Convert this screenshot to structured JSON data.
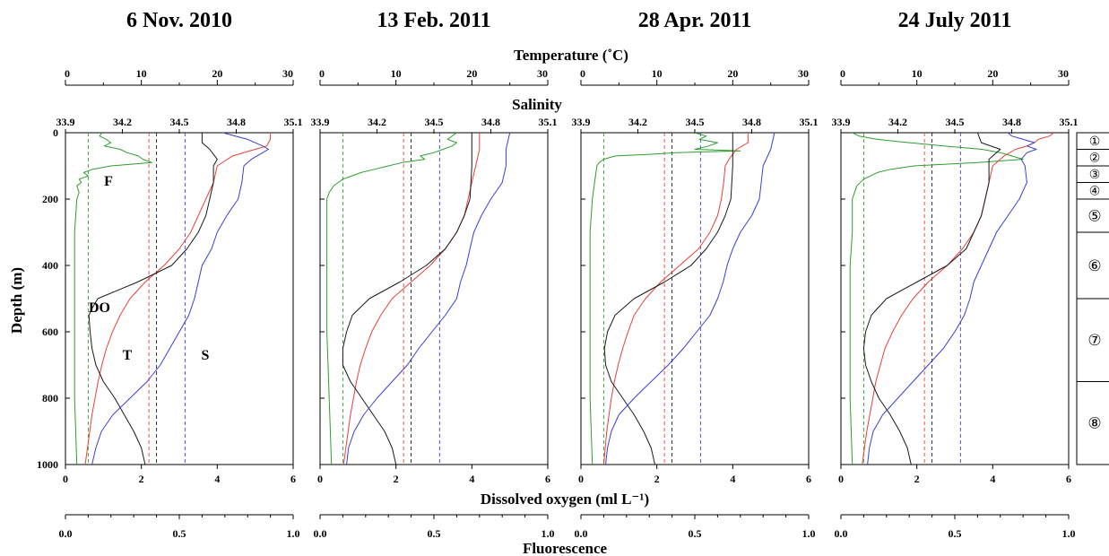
{
  "chart_data": {
    "type": "line",
    "panels": [
      {
        "title": "6 Nov. 2010",
        "curve_labels": {
          "F": "F",
          "DO": "DO",
          "T": "T",
          "S": "S"
        },
        "series": {
          "temperature": {
            "depth": [
              0,
              20,
              40,
              50,
              70,
              100,
              150,
              200,
              250,
              300,
              350,
              400,
              450,
              500,
              550,
              600,
              650,
              700,
              750,
              800,
              850,
              900,
              950,
              1000
            ],
            "value": [
              27,
              27,
              26.5,
              25,
              22,
              20,
              19.5,
              18.5,
              17.5,
              16.5,
              15,
              13,
              10.5,
              8.5,
              7.2,
              6.2,
              5.4,
              4.8,
              4.3,
              3.9,
              3.5,
              3.2,
              2.9,
              2.6
            ]
          },
          "salinity": {
            "depth": [
              0,
              20,
              40,
              50,
              60,
              80,
              100,
              150,
              200,
              250,
              300,
              350,
              400,
              450,
              500,
              550,
              600,
              650,
              700,
              750,
              800,
              850,
              900,
              950,
              1000
            ],
            "value": [
              34.73,
              34.86,
              34.94,
              34.97,
              34.94,
              34.88,
              34.84,
              34.83,
              34.81,
              34.75,
              34.7,
              34.67,
              34.62,
              34.6,
              34.58,
              34.55,
              34.5,
              34.45,
              34.4,
              34.33,
              34.24,
              34.15,
              34.09,
              34.06,
              34.04
            ]
          },
          "dissolved_oxygen": {
            "depth": [
              0,
              30,
              50,
              80,
              100,
              150,
              200,
              250,
              300,
              350,
              400,
              450,
              500,
              530,
              550,
              600,
              650,
              700,
              750,
              800,
              850,
              900,
              950,
              1000
            ],
            "value": [
              3.6,
              3.6,
              3.8,
              4.0,
              3.9,
              3.9,
              3.8,
              3.7,
              3.5,
              3.2,
              2.8,
              1.9,
              0.85,
              0.7,
              0.62,
              0.65,
              0.7,
              0.8,
              1.0,
              1.3,
              1.55,
              1.8,
              2.0,
              2.1
            ]
          },
          "fluorescence": {
            "depth": [
              0,
              10,
              20,
              30,
              40,
              50,
              60,
              70,
              80,
              90,
              100,
              110,
              120,
              130,
              140,
              150,
              160,
              180,
              200,
              300,
              400,
              600,
              800,
              1000
            ],
            "value": [
              0.16,
              0.15,
              0.18,
              0.2,
              0.17,
              0.24,
              0.27,
              0.32,
              0.34,
              0.38,
              0.2,
              0.12,
              0.08,
              0.1,
              0.06,
              0.07,
              0.05,
              0.06,
              0.05,
              0.04,
              0.04,
              0.04,
              0.04,
              0.05
            ]
          }
        }
      },
      {
        "title": "13 Feb. 2011",
        "curve_labels": {},
        "series": {
          "temperature": {
            "depth": [
              0,
              50,
              100,
              150,
              200,
              250,
              300,
              350,
              400,
              450,
              500,
              550,
              600,
              650,
              700,
              750,
              800,
              850,
              900,
              950,
              1000
            ],
            "value": [
              21,
              21,
              20.5,
              20,
              19.5,
              19,
              18,
              16.5,
              14.5,
              12,
              9.5,
              8,
              6.8,
              6,
              5.3,
              4.8,
              4.4,
              4,
              3.7,
              3.4,
              3.1
            ]
          },
          "salinity": {
            "depth": [
              0,
              50,
              100,
              150,
              200,
              250,
              300,
              350,
              400,
              450,
              500,
              550,
              600,
              650,
              700,
              750,
              800,
              850,
              900,
              950,
              1000
            ],
            "value": [
              34.9,
              34.88,
              34.88,
              34.86,
              34.8,
              34.75,
              34.71,
              34.69,
              34.67,
              34.64,
              34.62,
              34.56,
              34.49,
              34.42,
              34.36,
              34.28,
              34.2,
              34.13,
              34.08,
              34.05,
              34.04
            ]
          },
          "dissolved_oxygen": {
            "depth": [
              0,
              100,
              200,
              250,
              300,
              350,
              400,
              450,
              500,
              550,
              600,
              650,
              700,
              750,
              800,
              850,
              900,
              950,
              1000
            ],
            "value": [
              4.0,
              4.0,
              3.95,
              3.8,
              3.6,
              3.3,
              2.8,
              2.1,
              1.3,
              0.85,
              0.7,
              0.6,
              0.6,
              0.8,
              1.1,
              1.4,
              1.7,
              1.9,
              2.0
            ]
          },
          "fluorescence": {
            "depth": [
              0,
              20,
              30,
              40,
              50,
              60,
              70,
              80,
              90,
              100,
              110,
              120,
              130,
              140,
              150,
              160,
              180,
              200,
              300,
              400,
              600,
              800,
              1000
            ],
            "value": [
              0.6,
              0.56,
              0.6,
              0.58,
              0.54,
              0.5,
              0.44,
              0.46,
              0.36,
              0.3,
              0.24,
              0.18,
              0.14,
              0.1,
              0.08,
              0.06,
              0.04,
              0.03,
              0.03,
              0.03,
              0.03,
              0.04,
              0.05
            ]
          }
        }
      },
      {
        "title": "28 Apr. 2011",
        "curve_labels": {},
        "series": {
          "temperature": {
            "depth": [
              0,
              30,
              50,
              80,
              100,
              150,
              200,
              250,
              300,
              350,
              400,
              450,
              500,
              550,
              600,
              650,
              700,
              750,
              800,
              850,
              900,
              950,
              1000
            ],
            "value": [
              22,
              22,
              20.5,
              19.5,
              19,
              18.8,
              18.5,
              18,
              17,
              15.5,
              13,
              10.5,
              8.5,
              7,
              6.2,
              5.5,
              4.9,
              4.4,
              4,
              3.7,
              3.4,
              3.2,
              3
            ]
          },
          "salinity": {
            "depth": [
              0,
              50,
              100,
              150,
              200,
              250,
              300,
              350,
              400,
              450,
              500,
              550,
              600,
              650,
              700,
              750,
              800,
              850,
              900,
              950,
              1000
            ],
            "value": [
              34.92,
              34.9,
              34.86,
              34.85,
              34.84,
              34.8,
              34.74,
              34.7,
              34.67,
              34.65,
              34.62,
              34.58,
              34.51,
              34.44,
              34.36,
              34.27,
              34.18,
              34.1,
              34.06,
              34.04,
              34.03
            ]
          },
          "dissolved_oxygen": {
            "depth": [
              0,
              100,
              200,
              250,
              300,
              350,
              400,
              450,
              500,
              550,
              600,
              650,
              700,
              750,
              800,
              850,
              900,
              950,
              1000
            ],
            "value": [
              4.0,
              4.0,
              3.95,
              3.8,
              3.6,
              3.3,
              2.9,
              2.2,
              1.4,
              0.9,
              0.7,
              0.62,
              0.65,
              0.8,
              1.1,
              1.4,
              1.65,
              1.85,
              1.95
            ]
          },
          "fluorescence": {
            "depth": [
              0,
              10,
              20,
              30,
              40,
              50,
              55,
              60,
              65,
              70,
              80,
              90,
              100,
              150,
              200,
              300,
              400,
              600,
              800,
              1000
            ],
            "value": [
              0.5,
              0.55,
              0.52,
              0.6,
              0.56,
              0.5,
              0.7,
              0.42,
              0.3,
              0.15,
              0.1,
              0.08,
              0.07,
              0.06,
              0.05,
              0.04,
              0.04,
              0.04,
              0.04,
              0.05
            ]
          }
        }
      },
      {
        "title": "24 July 2011",
        "curve_labels": {},
        "series": {
          "temperature": {
            "depth": [
              0,
              10,
              20,
              30,
              40,
              50,
              70,
              100,
              150,
              200,
              250,
              300,
              350,
              400,
              450,
              500,
              550,
              600,
              650,
              700,
              750,
              800,
              850,
              900,
              950,
              1000
            ],
            "value": [
              28,
              27.5,
              26,
              25.5,
              24.5,
              23,
              21.5,
              20,
              19.5,
              19,
              18.5,
              17.5,
              16,
              14,
              11.5,
              9.5,
              8,
              6.8,
              5.8,
              5.2,
              4.6,
              4.2,
              3.8,
              3.4,
              3.1,
              2.8
            ]
          },
          "salinity": {
            "depth": [
              0,
              10,
              20,
              30,
              40,
              50,
              60,
              80,
              100,
              150,
              200,
              250,
              300,
              350,
              400,
              450,
              500,
              550,
              600,
              650,
              700,
              750,
              800,
              850,
              900,
              950,
              1000
            ],
            "value": [
              34.78,
              34.8,
              34.86,
              34.92,
              34.88,
              34.93,
              34.88,
              34.85,
              34.87,
              34.88,
              34.84,
              34.78,
              34.72,
              34.68,
              34.64,
              34.6,
              34.58,
              34.55,
              34.5,
              34.44,
              34.36,
              34.28,
              34.2,
              34.12,
              34.07,
              34.05,
              34.04
            ]
          },
          "dissolved_oxygen": {
            "depth": [
              0,
              30,
              50,
              80,
              100,
              150,
              200,
              250,
              300,
              350,
              400,
              450,
              500,
              550,
              600,
              650,
              700,
              750,
              800,
              850,
              900,
              950,
              1000
            ],
            "value": [
              3.6,
              3.7,
              4.2,
              3.9,
              3.9,
              3.9,
              3.8,
              3.7,
              3.5,
              3.3,
              2.8,
              2.0,
              1.2,
              0.8,
              0.65,
              0.6,
              0.65,
              0.8,
              1.0,
              1.3,
              1.55,
              1.75,
              1.85
            ]
          },
          "fluorescence": {
            "depth": [
              0,
              10,
              20,
              30,
              40,
              50,
              60,
              70,
              80,
              90,
              100,
              110,
              120,
              130,
              140,
              160,
              180,
              200,
              300,
              400,
              600,
              800,
              1000
            ],
            "value": [
              0.05,
              0.08,
              0.16,
              0.3,
              0.45,
              0.62,
              0.7,
              0.75,
              0.8,
              0.6,
              0.32,
              0.22,
              0.16,
              0.13,
              0.1,
              0.07,
              0.06,
              0.05,
              0.05,
              0.04,
              0.04,
              0.04,
              0.05
            ]
          }
        }
      }
    ],
    "dashed_reference_lines": {
      "fluorescence_value": 0.1,
      "temperature_value": 11,
      "dissolved_oxygen_value": 2.4,
      "salinity_value": 34.53
    },
    "axes": {
      "temperature": {
        "label": "Temperature (˚C)",
        "range": [
          0,
          30
        ],
        "ticks": [
          0,
          10,
          20,
          30
        ]
      },
      "salinity": {
        "label": "Salinity",
        "range": [
          33.9,
          35.1
        ],
        "ticks": [
          "33.9",
          "34.2",
          "34.5",
          "34.8",
          "35.1"
        ]
      },
      "depth": {
        "label": "Depth (m)",
        "range": [
          0,
          1000
        ],
        "inverted": true,
        "ticks": [
          0,
          200,
          400,
          600,
          800,
          1000
        ]
      },
      "dissolved_oxygen": {
        "label": "Dissolved oxygen (ml L⁻¹)",
        "range": [
          0,
          6
        ],
        "ticks": [
          0,
          2,
          4,
          6
        ]
      },
      "fluorescence": {
        "label": "Fluorescence",
        "range": [
          0,
          1
        ],
        "ticks": [
          "0.0",
          "0.5",
          "1.0"
        ]
      }
    },
    "zones": [
      {
        "label": "①",
        "top_depth": 0,
        "bottom_depth": 50
      },
      {
        "label": "②",
        "top_depth": 50,
        "bottom_depth": 100
      },
      {
        "label": "③",
        "top_depth": 100,
        "bottom_depth": 150
      },
      {
        "label": "④",
        "top_depth": 150,
        "bottom_depth": 200
      },
      {
        "label": "⑤",
        "top_depth": 200,
        "bottom_depth": 300
      },
      {
        "label": "⑥",
        "top_depth": 300,
        "bottom_depth": 500
      },
      {
        "label": "⑦",
        "top_depth": 500,
        "bottom_depth": 750
      },
      {
        "label": "⑧",
        "top_depth": 750,
        "bottom_depth": 1000
      }
    ],
    "colors": {
      "temperature": "#e8413a",
      "salinity": "#3d3dd6",
      "dissolved_oxygen": "#1a1a1a",
      "fluorescence": "#2f9e2f"
    },
    "grid": false
  }
}
